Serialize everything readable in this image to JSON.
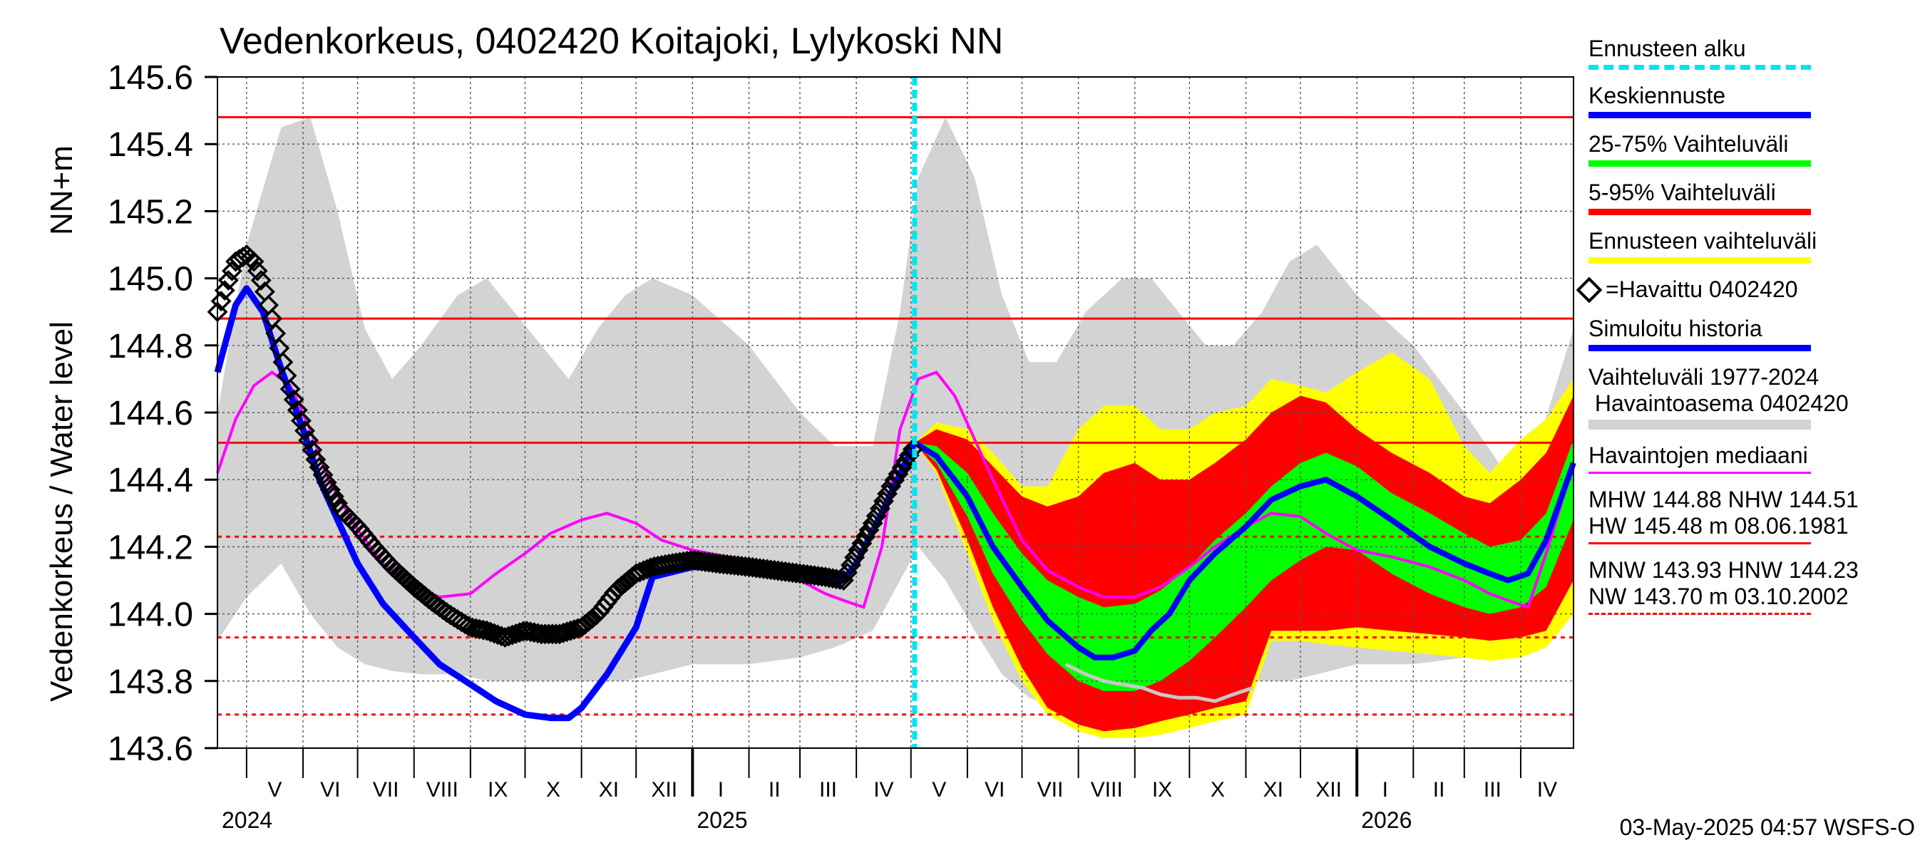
{
  "chart_data": {
    "type": "line",
    "title": "Vedenkorkeus, 0402420 Koitajoki, Lylykoski NN",
    "ylabel": "Vedenkorkeus / Water level",
    "ylabel_unit": "NN+m",
    "ylim": [
      143.6,
      145.6
    ],
    "y_ticks": [
      "143.6",
      "143.8",
      "144.0",
      "144.2",
      "144.4",
      "144.6",
      "144.8",
      "145.0",
      "145.2",
      "145.4",
      "145.6"
    ],
    "x_start": "2024-04-15",
    "x_end": "2026-04-30",
    "forecast_start": "2025-05-03",
    "month_labels": [
      {
        "date": "2024-05-01",
        "label": "V"
      },
      {
        "date": "2024-06-01",
        "label": "VI"
      },
      {
        "date": "2024-07-01",
        "label": "VII"
      },
      {
        "date": "2024-08-01",
        "label": "VIII"
      },
      {
        "date": "2024-09-01",
        "label": "IX"
      },
      {
        "date": "2024-10-01",
        "label": "X"
      },
      {
        "date": "2024-11-01",
        "label": "XI"
      },
      {
        "date": "2024-12-01",
        "label": "XII"
      },
      {
        "date": "2025-01-01",
        "label": "I"
      },
      {
        "date": "2025-02-01",
        "label": "II"
      },
      {
        "date": "2025-03-01",
        "label": "III"
      },
      {
        "date": "2025-04-01",
        "label": "IV"
      },
      {
        "date": "2025-05-01",
        "label": "V"
      },
      {
        "date": "2025-06-01",
        "label": "VI"
      },
      {
        "date": "2025-07-01",
        "label": "VII"
      },
      {
        "date": "2025-08-01",
        "label": "VIII"
      },
      {
        "date": "2025-09-01",
        "label": "IX"
      },
      {
        "date": "2025-10-01",
        "label": "X"
      },
      {
        "date": "2025-11-01",
        "label": "XI"
      },
      {
        "date": "2025-12-01",
        "label": "XII"
      },
      {
        "date": "2026-01-01",
        "label": "I"
      },
      {
        "date": "2026-02-01",
        "label": "II"
      },
      {
        "date": "2026-03-01",
        "label": "III"
      },
      {
        "date": "2026-04-01",
        "label": "IV"
      }
    ],
    "year_labels": [
      {
        "date": "2024-04-15",
        "label": "2024"
      },
      {
        "date": "2025-01-01",
        "label": "2025"
      },
      {
        "date": "2026-01-01",
        "label": "2026"
      }
    ],
    "reference_lines": [
      {
        "name": "HW",
        "value": 145.48,
        "style": "solid"
      },
      {
        "name": "MHW",
        "value": 144.88,
        "style": "solid"
      },
      {
        "name": "NHW",
        "value": 144.51,
        "style": "solid"
      },
      {
        "name": "HNW",
        "value": 144.23,
        "style": "dashed"
      },
      {
        "name": "MNW",
        "value": 143.93,
        "style": "dashed"
      },
      {
        "name": "NW",
        "value": 143.7,
        "style": "dashed"
      }
    ],
    "historical_range": {
      "x": [
        "2024-04-15",
        "2024-05-01",
        "2024-05-20",
        "2024-06-05",
        "2024-06-20",
        "2024-07-05",
        "2024-07-20",
        "2024-08-05",
        "2024-08-25",
        "2024-09-10",
        "2024-09-25",
        "2024-10-10",
        "2024-10-25",
        "2024-11-10",
        "2024-11-25",
        "2024-12-10",
        "2025-01-01",
        "2025-02-01",
        "2025-03-01",
        "2025-03-20",
        "2025-04-10",
        "2025-04-25",
        "2025-05-05",
        "2025-05-20",
        "2025-06-05",
        "2025-06-20",
        "2025-07-05",
        "2025-07-20",
        "2025-08-05",
        "2025-08-25",
        "2025-09-10",
        "2025-09-25",
        "2025-10-10",
        "2025-10-25",
        "2025-11-10",
        "2025-11-25",
        "2025-12-10",
        "2026-01-01",
        "2026-02-01",
        "2026-03-01",
        "2026-03-20",
        "2026-04-10",
        "2026-04-30"
      ],
      "low": [
        143.92,
        144.05,
        144.15,
        144.0,
        143.9,
        143.85,
        143.83,
        143.82,
        143.82,
        143.8,
        143.8,
        143.8,
        143.8,
        143.8,
        143.8,
        143.82,
        143.85,
        143.85,
        143.87,
        143.9,
        143.95,
        144.1,
        144.2,
        144.1,
        143.95,
        143.82,
        143.75,
        143.72,
        143.72,
        143.72,
        143.72,
        143.75,
        143.78,
        143.8,
        143.8,
        143.8,
        143.82,
        143.85,
        143.85,
        143.87,
        143.9,
        143.95,
        144.0
      ],
      "high": [
        144.6,
        145.1,
        145.45,
        145.48,
        145.2,
        144.85,
        144.7,
        144.8,
        144.95,
        145.0,
        144.9,
        144.8,
        144.7,
        144.85,
        144.95,
        145.0,
        144.95,
        144.8,
        144.6,
        144.5,
        144.5,
        144.9,
        145.3,
        145.48,
        145.3,
        144.95,
        144.75,
        144.75,
        144.9,
        145.0,
        145.0,
        144.9,
        144.8,
        144.8,
        144.9,
        145.05,
        145.1,
        144.95,
        144.8,
        144.6,
        144.45,
        144.5,
        144.85
      ]
    },
    "series": [
      {
        "name": "=Havaittu 0402420",
        "type": "observed",
        "x": [
          "2024-04-15",
          "2024-04-20",
          "2024-04-25",
          "2024-05-01",
          "2024-05-05",
          "2024-05-10",
          "2024-05-15",
          "2024-05-20",
          "2024-05-25",
          "2024-06-01",
          "2024-06-08",
          "2024-06-15",
          "2024-06-22",
          "2024-07-01",
          "2024-07-10",
          "2024-07-20",
          "2024-08-01",
          "2024-08-10",
          "2024-08-20",
          "2024-09-01",
          "2024-09-10",
          "2024-09-20",
          "2024-10-01",
          "2024-10-10",
          "2024-10-20",
          "2024-11-01",
          "2024-11-10",
          "2024-11-20",
          "2024-12-01",
          "2024-12-10",
          "2024-12-20",
          "2025-01-01",
          "2025-01-15",
          "2025-02-01",
          "2025-02-15",
          "2025-03-01",
          "2025-03-15",
          "2025-03-25",
          "2025-04-01",
          "2025-04-10",
          "2025-04-20",
          "2025-05-03"
        ],
        "values": [
          144.9,
          144.98,
          145.05,
          145.07,
          145.05,
          144.98,
          144.88,
          144.77,
          144.67,
          144.56,
          144.46,
          144.38,
          144.31,
          144.26,
          144.2,
          144.14,
          144.08,
          144.04,
          144.0,
          143.96,
          143.95,
          143.93,
          143.95,
          143.94,
          143.94,
          143.96,
          144.0,
          144.07,
          144.12,
          144.14,
          144.15,
          144.16,
          144.15,
          144.14,
          144.13,
          144.12,
          144.11,
          144.1,
          144.18,
          144.27,
          144.38,
          144.5
        ]
      },
      {
        "name": "Simuloitu historia",
        "type": "simulated",
        "x": [
          "2024-04-15",
          "2024-04-25",
          "2024-05-01",
          "2024-05-10",
          "2024-05-20",
          "2024-06-01",
          "2024-06-10",
          "2024-06-20",
          "2024-07-01",
          "2024-07-15",
          "2024-08-01",
          "2024-08-15",
          "2024-09-01",
          "2024-09-15",
          "2024-10-01",
          "2024-10-15",
          "2024-10-25",
          "2024-11-01",
          "2024-11-15",
          "2024-12-01",
          "2024-12-10",
          "2025-01-01",
          "2025-01-15",
          "2025-02-01",
          "2025-03-01",
          "2025-03-15",
          "2025-03-25",
          "2025-04-01",
          "2025-04-15",
          "2025-05-03"
        ],
        "values": [
          144.72,
          144.92,
          144.97,
          144.9,
          144.73,
          144.55,
          144.4,
          144.28,
          144.15,
          144.03,
          143.93,
          143.85,
          143.79,
          143.74,
          143.7,
          143.69,
          143.69,
          143.72,
          143.82,
          143.96,
          144.11,
          144.14,
          144.14,
          144.13,
          144.12,
          144.11,
          144.1,
          144.15,
          144.3,
          144.51
        ]
      },
      {
        "name": "Havaintojen mediaani",
        "type": "median",
        "x": [
          "2024-04-15",
          "2024-04-25",
          "2024-05-05",
          "2024-05-15",
          "2024-05-25",
          "2024-06-05",
          "2024-06-15",
          "2024-07-01",
          "2024-07-15",
          "2024-08-01",
          "2024-08-15",
          "2024-09-01",
          "2024-09-15",
          "2024-10-01",
          "2024-10-15",
          "2024-11-01",
          "2024-11-15",
          "2024-12-01",
          "2024-12-15",
          "2025-01-01",
          "2025-01-20",
          "2025-02-10",
          "2025-03-01",
          "2025-03-15",
          "2025-03-25",
          "2025-04-05",
          "2025-04-15",
          "2025-04-25",
          "2025-05-05",
          "2025-05-15",
          "2025-05-25",
          "2025-06-05",
          "2025-06-15",
          "2025-07-01",
          "2025-07-15",
          "2025-08-01",
          "2025-08-15",
          "2025-09-01",
          "2025-09-15",
          "2025-10-01",
          "2025-10-15",
          "2025-11-01",
          "2025-11-15",
          "2025-12-01",
          "2025-12-15",
          "2026-01-01",
          "2026-01-20",
          "2026-02-10",
          "2026-03-01",
          "2026-03-15",
          "2026-03-25",
          "2026-04-05",
          "2026-04-15",
          "2026-04-30"
        ],
        "values": [
          144.42,
          144.58,
          144.68,
          144.72,
          144.68,
          144.55,
          144.4,
          144.25,
          144.15,
          144.08,
          144.05,
          144.06,
          144.12,
          144.18,
          144.24,
          144.28,
          144.3,
          144.27,
          144.22,
          144.19,
          144.17,
          144.14,
          144.1,
          144.06,
          144.04,
          144.02,
          144.2,
          144.55,
          144.7,
          144.72,
          144.65,
          144.52,
          144.4,
          144.22,
          144.13,
          144.08,
          144.05,
          144.05,
          144.08,
          144.14,
          144.2,
          144.26,
          144.3,
          144.29,
          144.24,
          144.19,
          144.17,
          144.14,
          144.1,
          144.06,
          144.04,
          144.02,
          144.18,
          144.45
        ]
      },
      {
        "name": "Keskiennuste",
        "type": "forecast-mean",
        "x": [
          "2025-05-03",
          "2025-05-15",
          "2025-06-01",
          "2025-06-15",
          "2025-07-01",
          "2025-07-15",
          "2025-08-01",
          "2025-08-10",
          "2025-08-20",
          "2025-09-01",
          "2025-09-10",
          "2025-09-20",
          "2025-10-01",
          "2025-10-15",
          "2025-11-01",
          "2025-11-15",
          "2025-12-01",
          "2025-12-15",
          "2026-01-01",
          "2026-01-20",
          "2026-02-10",
          "2026-03-01",
          "2026-03-15",
          "2026-03-25",
          "2026-04-05",
          "2026-04-15",
          "2026-04-30"
        ],
        "values": [
          144.51,
          144.47,
          144.35,
          144.2,
          144.08,
          143.98,
          143.9,
          143.87,
          143.87,
          143.89,
          143.95,
          144.0,
          144.1,
          144.18,
          144.26,
          144.34,
          144.38,
          144.4,
          144.35,
          144.28,
          144.2,
          144.15,
          144.12,
          144.1,
          144.12,
          144.22,
          144.45
        ]
      }
    ],
    "forecast_bands": {
      "x": [
        "2025-05-03",
        "2025-05-15",
        "2025-06-01",
        "2025-06-15",
        "2025-07-01",
        "2025-07-15",
        "2025-08-01",
        "2025-08-15",
        "2025-09-01",
        "2025-09-15",
        "2025-10-01",
        "2025-10-15",
        "2025-11-01",
        "2025-11-15",
        "2025-12-01",
        "2025-12-15",
        "2026-01-01",
        "2026-01-20",
        "2026-02-10",
        "2026-03-01",
        "2026-03-15",
        "2026-04-01",
        "2026-04-15",
        "2026-04-30"
      ],
      "ennusteen_vaihteluvali": {
        "low": [
          144.51,
          144.42,
          144.18,
          143.98,
          143.8,
          143.7,
          143.65,
          143.63,
          143.63,
          143.64,
          143.66,
          143.68,
          143.7,
          143.92,
          143.92,
          143.91,
          143.9,
          143.89,
          143.88,
          143.87,
          143.86,
          143.87,
          143.9,
          144.0
        ],
        "high": [
          144.51,
          144.57,
          144.55,
          144.48,
          144.38,
          144.38,
          144.55,
          144.62,
          144.62,
          144.55,
          144.55,
          144.6,
          144.62,
          144.7,
          144.68,
          144.66,
          144.72,
          144.78,
          144.7,
          144.5,
          144.42,
          144.52,
          144.58,
          144.7
        ]
      },
      "vaihteluvali_5_95": {
        "low": [
          144.51,
          144.43,
          144.22,
          144.02,
          143.84,
          143.72,
          143.67,
          143.65,
          143.66,
          143.68,
          143.7,
          143.72,
          143.74,
          143.95,
          143.95,
          143.95,
          143.96,
          143.95,
          143.94,
          143.93,
          143.92,
          143.93,
          143.95,
          144.1
        ],
        "high": [
          144.51,
          144.55,
          144.52,
          144.44,
          144.35,
          144.32,
          144.35,
          144.42,
          144.45,
          144.4,
          144.4,
          144.45,
          144.52,
          144.6,
          144.65,
          144.63,
          144.55,
          144.48,
          144.42,
          144.35,
          144.33,
          144.4,
          144.48,
          144.65
        ]
      },
      "vaihteluvali_25_75": {
        "low": [
          144.51,
          144.45,
          144.29,
          144.12,
          143.98,
          143.88,
          143.8,
          143.77,
          143.77,
          143.8,
          143.86,
          143.93,
          144.02,
          144.1,
          144.16,
          144.2,
          144.19,
          144.12,
          144.06,
          144.02,
          144.0,
          144.02,
          144.08,
          144.28
        ],
        "high": [
          144.51,
          144.5,
          144.42,
          144.3,
          144.18,
          144.1,
          144.05,
          144.02,
          144.03,
          144.07,
          144.14,
          144.22,
          144.3,
          144.38,
          144.45,
          144.48,
          144.44,
          144.36,
          144.3,
          144.24,
          144.2,
          144.22,
          144.3,
          144.52
        ]
      }
    },
    "simulated_history_future": {
      "x": [
        "2025-07-25",
        "2025-08-05",
        "2025-08-15",
        "2025-08-25",
        "2025-09-05",
        "2025-09-15",
        "2025-09-25",
        "2025-10-05",
        "2025-10-15",
        "2025-10-25",
        "2025-11-05"
      ],
      "values": [
        143.85,
        143.82,
        143.8,
        143.79,
        143.78,
        143.76,
        143.75,
        143.75,
        143.74,
        143.76,
        143.78
      ]
    },
    "legend": [
      {
        "label": "Ennusteen alku",
        "color": "#00e5ee",
        "style": "dashed"
      },
      {
        "label": "Keskiennuste",
        "color": "#0000ff",
        "style": "thick"
      },
      {
        "label": "25-75% Vaihteluväli",
        "color": "#00ff00",
        "style": "thick"
      },
      {
        "label": "5-95% Vaihteluväli",
        "color": "#ff0000",
        "style": "thick"
      },
      {
        "label": "Ennusteen vaihteluväli",
        "color": "#ffff00",
        "style": "thick"
      },
      {
        "label": "=Havaittu 0402420",
        "color": "#000000",
        "style": "marker"
      },
      {
        "label": "Simuloitu historia",
        "color": "#0000ff",
        "style": "thick"
      },
      {
        "label": "Vaihteluväli 1977-2024",
        "label2": " Havaintoasema 0402420",
        "color": "#d3d3d3",
        "style": "thick"
      },
      {
        "label": "Havaintojen mediaani",
        "color": "#ff00ff",
        "style": "thin"
      }
    ],
    "stats": [
      {
        "line1": "MHW 144.88 NHW 144.51",
        "line2": "HW 145.48 m 08.06.1981",
        "color": "#ff0000",
        "style": "solid"
      },
      {
        "line1": "MNW 143.93 HNW 144.23",
        "line2": "NW 143.70 m 03.10.2002",
        "color": "#ff0000",
        "style": "dashed"
      }
    ],
    "footer": "03-May-2025 04:57 WSFS-O",
    "colors": {
      "historical_range": "#d3d3d3",
      "ennusteen_vaihteluvali": "#ffff00",
      "vaihteluvali_5_95": "#ff0000",
      "vaihteluvali_25_75": "#00ff00",
      "forecast_mean": "#0000ff",
      "simulated": "#0000ff",
      "median": "#ff00ff",
      "observed": "#000000",
      "forecast_start": "#00e5ee",
      "reference": "#ff0000",
      "simulated_future": "#c8c8c8"
    }
  }
}
